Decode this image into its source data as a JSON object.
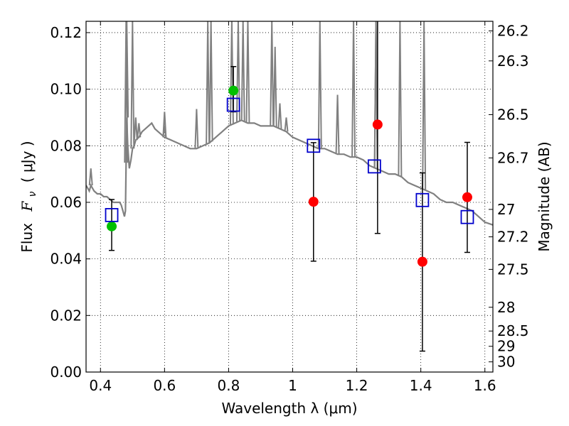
{
  "chart_data": {
    "type": "scatter",
    "title": "",
    "xlabel": "Wavelength  λ (μm)",
    "ylabel": "Flux  F_ν  ( μJy )",
    "ylabel_parts": {
      "prefix": "Flux",
      "symbol": "F",
      "subscript": "ν",
      "unit": "( μJy )"
    },
    "ylabel_right": "Magnitude (AB)",
    "xlim": [
      0.355,
      1.625
    ],
    "ylim": [
      0.0,
      0.124
    ],
    "grid": true,
    "grid_style": "dotted",
    "x_ticks": [
      0.4,
      0.6,
      0.8,
      1.0,
      1.2,
      1.4,
      1.6
    ],
    "x_tick_labels": [
      "0.4",
      "0.6",
      "0.8",
      "1",
      "1.2",
      "1.4",
      "1.6"
    ],
    "y_ticks": [
      0.0,
      0.02,
      0.04,
      0.06,
      0.08,
      0.1,
      0.12
    ],
    "y_tick_labels": [
      "0.00",
      "0.02",
      "0.04",
      "0.06",
      "0.08",
      "0.10",
      "0.12"
    ],
    "right_ticks": [
      {
        "label": "26.2",
        "flux": 0.1206
      },
      {
        "label": "26.3",
        "flux": 0.11
      },
      {
        "label": "26.5",
        "flux": 0.091
      },
      {
        "label": "26.7",
        "flux": 0.0757
      },
      {
        "label": "27",
        "flux": 0.0575
      },
      {
        "label": "27.2",
        "flux": 0.0478
      },
      {
        "label": "27.5",
        "flux": 0.0363
      },
      {
        "label": "28",
        "flux": 0.0229
      },
      {
        "label": "28.5",
        "flux": 0.0145
      },
      {
        "label": "29",
        "flux": 0.0091
      },
      {
        "label": "30",
        "flux": 0.0036
      }
    ],
    "series": [
      {
        "kind": "line",
        "color": "#808080",
        "x": [
          0.355,
          0.36,
          0.365,
          0.37,
          0.375,
          0.38,
          0.39,
          0.4,
          0.41,
          0.42,
          0.43,
          0.44,
          0.45,
          0.46,
          0.465,
          0.47,
          0.475,
          0.478,
          0.48,
          0.482,
          0.485,
          0.49,
          0.495,
          0.5,
          0.505,
          0.51,
          0.52,
          0.53,
          0.54,
          0.55,
          0.56,
          0.57,
          0.58,
          0.6,
          0.62,
          0.64,
          0.66,
          0.68,
          0.7,
          0.72,
          0.74,
          0.76,
          0.78,
          0.8,
          0.82,
          0.84,
          0.86,
          0.88,
          0.9,
          0.92,
          0.94,
          0.96,
          0.98,
          1.0,
          1.02,
          1.04,
          1.06,
          1.08,
          1.1,
          1.12,
          1.14,
          1.16,
          1.18,
          1.2,
          1.22,
          1.24,
          1.26,
          1.28,
          1.3,
          1.32,
          1.34,
          1.36,
          1.38,
          1.4,
          1.42,
          1.44,
          1.46,
          1.48,
          1.5,
          1.52,
          1.54,
          1.56,
          1.58,
          1.6,
          1.625
        ],
        "y": [
          0.066,
          0.065,
          0.064,
          0.066,
          0.065,
          0.064,
          0.063,
          0.063,
          0.062,
          0.062,
          0.061,
          0.06,
          0.06,
          0.06,
          0.059,
          0.057,
          0.055,
          0.057,
          0.074,
          0.09,
          0.08,
          0.072,
          0.075,
          0.079,
          0.08,
          0.082,
          0.083,
          0.085,
          0.086,
          0.087,
          0.088,
          0.086,
          0.085,
          0.083,
          0.082,
          0.081,
          0.08,
          0.079,
          0.079,
          0.08,
          0.081,
          0.083,
          0.085,
          0.087,
          0.088,
          0.089,
          0.088,
          0.088,
          0.087,
          0.087,
          0.087,
          0.086,
          0.085,
          0.083,
          0.082,
          0.081,
          0.08,
          0.079,
          0.079,
          0.078,
          0.077,
          0.077,
          0.076,
          0.076,
          0.075,
          0.073,
          0.072,
          0.071,
          0.07,
          0.07,
          0.069,
          0.067,
          0.066,
          0.065,
          0.064,
          0.063,
          0.061,
          0.06,
          0.06,
          0.059,
          0.058,
          0.057,
          0.055,
          0.053,
          0.052
        ]
      },
      {
        "kind": "spikes",
        "color": "#808080",
        "x": [
          0.37,
          0.48,
          0.482,
          0.5,
          0.51,
          0.52,
          0.6,
          0.6,
          0.7,
          0.735,
          0.745,
          0.81,
          0.83,
          0.845,
          0.86,
          0.935,
          0.945,
          0.96,
          0.98,
          1.085,
          1.14,
          1.19,
          1.26,
          1.26,
          1.335,
          1.41
        ],
        "y": [
          0.072,
          0.124,
          0.124,
          0.124,
          0.09,
          0.088,
          0.087,
          0.092,
          0.093,
          0.124,
          0.124,
          0.124,
          0.124,
          0.124,
          0.124,
          0.124,
          0.115,
          0.095,
          0.09,
          0.124,
          0.098,
          0.124,
          0.124,
          0.124,
          0.124,
          0.124
        ]
      },
      {
        "kind": "markers",
        "marker": "circle",
        "color": "#00bf00",
        "x": [
          0.435,
          0.815
        ],
        "y": [
          0.0515,
          0.0995
        ],
        "yerr_low": [
          0.043,
          0.092
        ],
        "yerr_high": [
          0.061,
          0.108
        ]
      },
      {
        "kind": "markers",
        "marker": "circle",
        "color": "#ff0000",
        "x": [
          1.065,
          1.265,
          1.405,
          1.545
        ],
        "y": [
          0.0602,
          0.0875,
          0.039,
          0.0618
        ],
        "yerr_low": [
          0.0392,
          0.049,
          0.0074,
          0.0423
        ],
        "yerr_high": [
          0.0811,
          0.124,
          0.0704,
          0.0812
        ]
      },
      {
        "kind": "markers",
        "marker": "open-square",
        "color": "#0000cc",
        "x": [
          0.435,
          0.815,
          1.065,
          1.255,
          1.405,
          1.545
        ],
        "y": [
          0.0555,
          0.0945,
          0.08,
          0.0727,
          0.0608,
          0.0548
        ]
      }
    ]
  }
}
